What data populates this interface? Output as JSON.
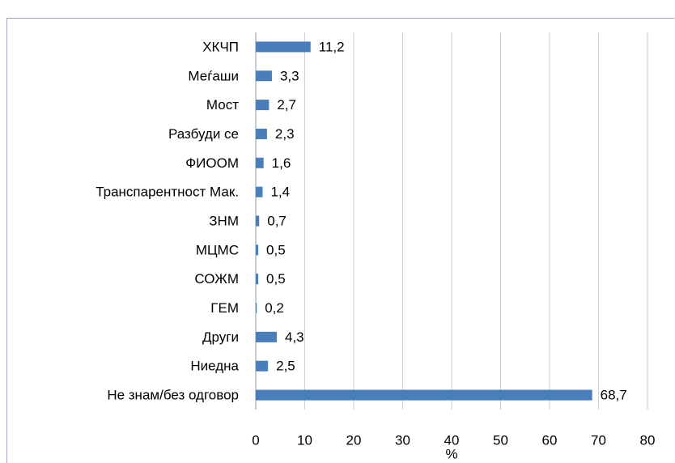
{
  "chart_data": {
    "type": "bar",
    "orientation": "horizontal",
    "categories": [
      "ХКЧП",
      "Меѓаши",
      "Мост",
      "Разбуди се",
      "ФИООМ",
      "Транспарентност Мак.",
      "ЗНМ",
      "МЦМС",
      "СОЖМ",
      "ГЕМ",
      "Други",
      "Ниедна",
      "Не знам/без одговор"
    ],
    "values": [
      11.2,
      3.3,
      2.7,
      2.3,
      1.6,
      1.4,
      0.7,
      0.5,
      0.5,
      0.2,
      4.3,
      2.5,
      68.7
    ],
    "value_labels": [
      "11,2",
      "3,3",
      "2,7",
      "2,3",
      "1,6",
      "1,4",
      "0,7",
      "0,5",
      "0,5",
      "0,2",
      "4,3",
      "2,5",
      "68,7"
    ],
    "color": "#4a7ebb",
    "xlabel": "%",
    "xlim": [
      0,
      80
    ],
    "xticks": [
      0,
      10,
      20,
      30,
      40,
      50,
      60,
      70,
      80
    ],
    "grid": true
  }
}
